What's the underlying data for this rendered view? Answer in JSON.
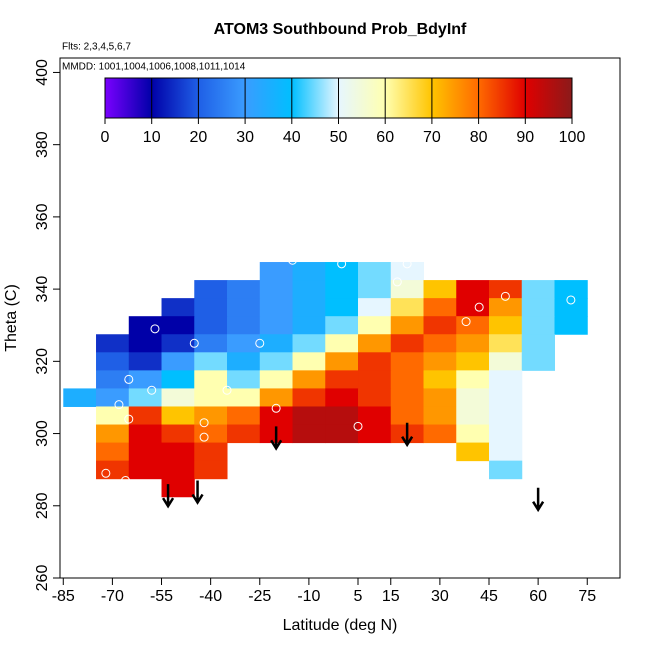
{
  "chart_data": {
    "type": "heatmap",
    "title": "ATOM3 Southbound Prob_BdyInf",
    "annotations": [
      "Flts: 2,3,4,5,6,7",
      "MMDD: 1001,1004,1006,1008,1011,1014"
    ],
    "x_label": "Latitude (deg N)",
    "y_label": "Theta (C)",
    "xlim": [
      -86,
      85
    ],
    "ylim": [
      260,
      404
    ],
    "xticks": [
      -85,
      -70,
      -55,
      -40,
      -25,
      -10,
      5,
      15,
      30,
      45,
      60,
      75
    ],
    "yticks": [
      260,
      280,
      300,
      320,
      340,
      360,
      380,
      400
    ],
    "grid_x": [
      -80,
      -70,
      -60,
      -50,
      -40,
      -30,
      -20,
      -10,
      0,
      10,
      20,
      30,
      40,
      50,
      60,
      70
    ],
    "grid_y": [
      345,
      340,
      335,
      330,
      325,
      320,
      315,
      310,
      305,
      300,
      295,
      290,
      285
    ],
    "z": [
      [
        null,
        null,
        null,
        null,
        null,
        null,
        30,
        35,
        40,
        45,
        50,
        null,
        null,
        null,
        null,
        null
      ],
      [
        null,
        null,
        null,
        null,
        20,
        25,
        30,
        35,
        40,
        45,
        55,
        70,
        90,
        85,
        45,
        40
      ],
      [
        null,
        null,
        null,
        15,
        20,
        25,
        30,
        35,
        40,
        50,
        65,
        80,
        90,
        75,
        45,
        40
      ],
      [
        null,
        null,
        10,
        10,
        20,
        25,
        30,
        35,
        45,
        60,
        75,
        85,
        80,
        70,
        45,
        40
      ],
      [
        null,
        15,
        10,
        15,
        25,
        30,
        35,
        45,
        60,
        75,
        85,
        80,
        75,
        65,
        45,
        null
      ],
      [
        null,
        20,
        15,
        30,
        45,
        35,
        45,
        60,
        75,
        85,
        80,
        75,
        70,
        55,
        45,
        null
      ],
      [
        null,
        25,
        30,
        40,
        60,
        45,
        60,
        75,
        85,
        85,
        80,
        70,
        60,
        50,
        null,
        null
      ],
      [
        35,
        30,
        45,
        55,
        60,
        60,
        75,
        85,
        90,
        85,
        80,
        75,
        55,
        50,
        null,
        null
      ],
      [
        null,
        60,
        85,
        70,
        75,
        80,
        90,
        95,
        95,
        90,
        80,
        75,
        55,
        50,
        null,
        null
      ],
      [
        null,
        75,
        90,
        85,
        80,
        85,
        90,
        95,
        95,
        90,
        85,
        80,
        60,
        50,
        null,
        null
      ],
      [
        null,
        80,
        90,
        90,
        85,
        null,
        null,
        null,
        null,
        null,
        null,
        null,
        70,
        50,
        null,
        null
      ],
      [
        null,
        85,
        90,
        90,
        85,
        null,
        null,
        null,
        null,
        null,
        null,
        null,
        null,
        45,
        null,
        null
      ],
      [
        null,
        null,
        null,
        90,
        null,
        null,
        null,
        null,
        null,
        null,
        null,
        null,
        null,
        null,
        null,
        null
      ]
    ],
    "points": {
      "x": [
        -57,
        -45,
        -25,
        -65,
        -58,
        -35,
        -20,
        -68,
        -42,
        -42,
        -65,
        -72,
        -66,
        -15,
        -5,
        0,
        5,
        17,
        20,
        38,
        42,
        50,
        70,
        5
      ],
      "y": [
        329,
        325,
        325,
        315,
        312,
        312,
        307,
        308,
        303,
        299,
        304,
        289,
        287,
        348,
        349,
        347,
        349,
        342,
        347,
        331,
        335,
        338,
        337,
        302
      ]
    },
    "arrows": {
      "x": [
        -53,
        -44,
        -20,
        20,
        60
      ],
      "y": [
        286,
        287,
        302,
        303,
        285
      ]
    },
    "colorbar": {
      "lim": [
        0,
        100
      ],
      "ticks": [
        0,
        10,
        20,
        30,
        40,
        50,
        60,
        70,
        80,
        90,
        100
      ],
      "colors": [
        "#7a00ff",
        "#0000a8",
        "#1f5fe6",
        "#3a9cff",
        "#00bfff",
        "#e6f6ff",
        "#ffffb0",
        "#ffc400",
        "#ff6a00",
        "#e00000",
        "#8b1a1a"
      ]
    }
  }
}
